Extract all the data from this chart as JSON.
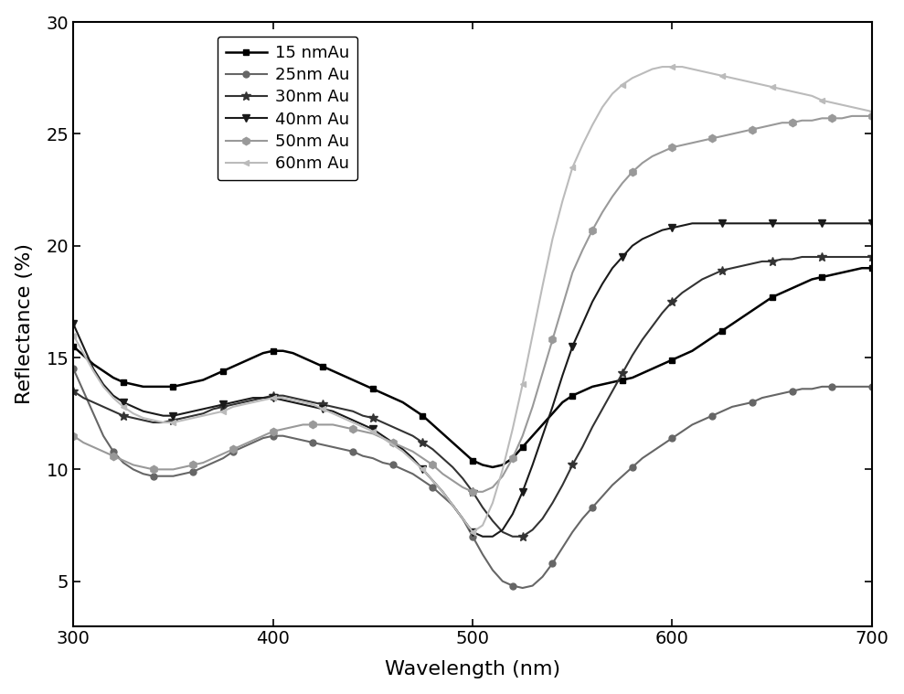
{
  "title": "",
  "xlabel": "Wavelength (nm)",
  "ylabel": "Reflectance (%)",
  "xlim": [
    300,
    700
  ],
  "ylim": [
    3,
    30
  ],
  "yticks": [
    5,
    10,
    15,
    20,
    25,
    30
  ],
  "xticks": [
    300,
    400,
    500,
    600,
    700
  ],
  "background_color": "#ffffff",
  "series": [
    {
      "label": "15 nmAu",
      "color": "#000000",
      "marker": "s",
      "markersize": 5,
      "linewidth": 1.8,
      "markevery": 5,
      "x": [
        300,
        305,
        310,
        315,
        320,
        325,
        330,
        335,
        340,
        345,
        350,
        355,
        360,
        365,
        370,
        375,
        380,
        385,
        390,
        395,
        400,
        405,
        410,
        415,
        420,
        425,
        430,
        435,
        440,
        445,
        450,
        455,
        460,
        465,
        470,
        475,
        480,
        485,
        490,
        495,
        500,
        505,
        510,
        515,
        520,
        525,
        530,
        535,
        540,
        545,
        550,
        555,
        560,
        565,
        570,
        575,
        580,
        585,
        590,
        595,
        600,
        605,
        610,
        615,
        620,
        625,
        630,
        635,
        640,
        645,
        650,
        655,
        660,
        665,
        670,
        675,
        680,
        685,
        690,
        695,
        700
      ],
      "y": [
        15.5,
        15.1,
        14.7,
        14.4,
        14.1,
        13.9,
        13.8,
        13.7,
        13.7,
        13.7,
        13.7,
        13.8,
        13.9,
        14.0,
        14.2,
        14.4,
        14.6,
        14.8,
        15.0,
        15.2,
        15.3,
        15.3,
        15.2,
        15.0,
        14.8,
        14.6,
        14.4,
        14.2,
        14.0,
        13.8,
        13.6,
        13.4,
        13.2,
        13.0,
        12.7,
        12.4,
        12.0,
        11.6,
        11.2,
        10.8,
        10.4,
        10.2,
        10.1,
        10.2,
        10.5,
        11.0,
        11.5,
        12.0,
        12.5,
        13.0,
        13.3,
        13.5,
        13.7,
        13.8,
        13.9,
        14.0,
        14.1,
        14.3,
        14.5,
        14.7,
        14.9,
        15.1,
        15.3,
        15.6,
        15.9,
        16.2,
        16.5,
        16.8,
        17.1,
        17.4,
        17.7,
        17.9,
        18.1,
        18.3,
        18.5,
        18.6,
        18.7,
        18.8,
        18.9,
        19.0,
        19.0
      ]
    },
    {
      "label": "25nm Au",
      "color": "#666666",
      "marker": "o",
      "markersize": 5,
      "linewidth": 1.5,
      "markevery": 4,
      "x": [
        300,
        305,
        310,
        315,
        320,
        325,
        330,
        335,
        340,
        345,
        350,
        355,
        360,
        365,
        370,
        375,
        380,
        385,
        390,
        395,
        400,
        405,
        410,
        415,
        420,
        425,
        430,
        435,
        440,
        445,
        450,
        455,
        460,
        465,
        470,
        475,
        480,
        485,
        490,
        495,
        500,
        505,
        510,
        515,
        520,
        525,
        530,
        535,
        540,
        545,
        550,
        555,
        560,
        565,
        570,
        575,
        580,
        585,
        590,
        595,
        600,
        605,
        610,
        615,
        620,
        625,
        630,
        635,
        640,
        645,
        650,
        655,
        660,
        665,
        670,
        675,
        680,
        685,
        690,
        695,
        700
      ],
      "y": [
        14.5,
        13.5,
        12.5,
        11.5,
        10.8,
        10.3,
        10.0,
        9.8,
        9.7,
        9.7,
        9.7,
        9.8,
        9.9,
        10.1,
        10.3,
        10.5,
        10.8,
        11.0,
        11.2,
        11.4,
        11.5,
        11.5,
        11.4,
        11.3,
        11.2,
        11.1,
        11.0,
        10.9,
        10.8,
        10.6,
        10.5,
        10.3,
        10.2,
        10.0,
        9.8,
        9.5,
        9.2,
        8.8,
        8.4,
        7.8,
        7.0,
        6.2,
        5.5,
        5.0,
        4.8,
        4.7,
        4.8,
        5.2,
        5.8,
        6.5,
        7.2,
        7.8,
        8.3,
        8.8,
        9.3,
        9.7,
        10.1,
        10.5,
        10.8,
        11.1,
        11.4,
        11.7,
        12.0,
        12.2,
        12.4,
        12.6,
        12.8,
        12.9,
        13.0,
        13.2,
        13.3,
        13.4,
        13.5,
        13.6,
        13.6,
        13.7,
        13.7,
        13.7,
        13.7,
        13.7,
        13.7
      ]
    },
    {
      "label": "30nm Au",
      "color": "#333333",
      "marker": "*",
      "markersize": 7,
      "linewidth": 1.5,
      "markevery": 5,
      "x": [
        300,
        305,
        310,
        315,
        320,
        325,
        330,
        335,
        340,
        345,
        350,
        355,
        360,
        365,
        370,
        375,
        380,
        385,
        390,
        395,
        400,
        405,
        410,
        415,
        420,
        425,
        430,
        435,
        440,
        445,
        450,
        455,
        460,
        465,
        470,
        475,
        480,
        485,
        490,
        495,
        500,
        505,
        510,
        515,
        520,
        525,
        530,
        535,
        540,
        545,
        550,
        555,
        560,
        565,
        570,
        575,
        580,
        585,
        590,
        595,
        600,
        605,
        610,
        615,
        620,
        625,
        630,
        635,
        640,
        645,
        650,
        655,
        660,
        665,
        670,
        675,
        680,
        685,
        690,
        695,
        700
      ],
      "y": [
        13.5,
        13.2,
        13.0,
        12.8,
        12.6,
        12.4,
        12.3,
        12.2,
        12.1,
        12.1,
        12.2,
        12.3,
        12.4,
        12.5,
        12.7,
        12.8,
        12.9,
        13.0,
        13.1,
        13.2,
        13.3,
        13.3,
        13.2,
        13.1,
        13.0,
        12.9,
        12.8,
        12.7,
        12.6,
        12.4,
        12.3,
        12.1,
        11.9,
        11.7,
        11.5,
        11.2,
        10.9,
        10.5,
        10.1,
        9.6,
        9.0,
        8.3,
        7.7,
        7.2,
        7.0,
        7.0,
        7.3,
        7.8,
        8.5,
        9.3,
        10.2,
        11.0,
        11.9,
        12.7,
        13.5,
        14.3,
        15.1,
        15.8,
        16.4,
        17.0,
        17.5,
        17.9,
        18.2,
        18.5,
        18.7,
        18.9,
        19.0,
        19.1,
        19.2,
        19.3,
        19.3,
        19.4,
        19.4,
        19.5,
        19.5,
        19.5,
        19.5,
        19.5,
        19.5,
        19.5,
        19.5
      ]
    },
    {
      "label": "40nm Au",
      "color": "#1a1a1a",
      "marker": "v",
      "markersize": 6,
      "linewidth": 1.5,
      "markevery": 5,
      "x": [
        300,
        305,
        310,
        315,
        320,
        325,
        330,
        335,
        340,
        345,
        350,
        355,
        360,
        365,
        370,
        375,
        380,
        385,
        390,
        395,
        400,
        405,
        410,
        415,
        420,
        425,
        430,
        435,
        440,
        445,
        450,
        455,
        460,
        465,
        470,
        475,
        480,
        485,
        490,
        495,
        500,
        505,
        510,
        515,
        520,
        525,
        530,
        535,
        540,
        545,
        550,
        555,
        560,
        565,
        570,
        575,
        580,
        585,
        590,
        595,
        600,
        605,
        610,
        615,
        620,
        625,
        630,
        635,
        640,
        645,
        650,
        655,
        660,
        665,
        670,
        675,
        680,
        685,
        690,
        695,
        700
      ],
      "y": [
        16.5,
        15.5,
        14.5,
        13.8,
        13.3,
        13.0,
        12.8,
        12.6,
        12.5,
        12.4,
        12.4,
        12.5,
        12.6,
        12.7,
        12.8,
        12.9,
        13.0,
        13.1,
        13.2,
        13.2,
        13.2,
        13.1,
        13.0,
        12.9,
        12.8,
        12.7,
        12.6,
        12.4,
        12.2,
        12.0,
        11.8,
        11.5,
        11.2,
        10.9,
        10.5,
        10.0,
        9.5,
        9.0,
        8.4,
        7.8,
        7.2,
        7.0,
        7.0,
        7.3,
        8.0,
        9.0,
        10.2,
        11.5,
        12.8,
        14.2,
        15.5,
        16.5,
        17.5,
        18.3,
        19.0,
        19.5,
        20.0,
        20.3,
        20.5,
        20.7,
        20.8,
        20.9,
        21.0,
        21.0,
        21.0,
        21.0,
        21.0,
        21.0,
        21.0,
        21.0,
        21.0,
        21.0,
        21.0,
        21.0,
        21.0,
        21.0,
        21.0,
        21.0,
        21.0,
        21.0,
        21.0
      ]
    },
    {
      "label": "50nm Au",
      "color": "#999999",
      "marker": "h",
      "markersize": 6,
      "linewidth": 1.5,
      "markevery": 4,
      "x": [
        300,
        305,
        310,
        315,
        320,
        325,
        330,
        335,
        340,
        345,
        350,
        355,
        360,
        365,
        370,
        375,
        380,
        385,
        390,
        395,
        400,
        405,
        410,
        415,
        420,
        425,
        430,
        435,
        440,
        445,
        450,
        455,
        460,
        465,
        470,
        475,
        480,
        485,
        490,
        495,
        500,
        505,
        510,
        515,
        520,
        525,
        530,
        535,
        540,
        545,
        550,
        555,
        560,
        565,
        570,
        575,
        580,
        585,
        590,
        595,
        600,
        605,
        610,
        615,
        620,
        625,
        630,
        635,
        640,
        645,
        650,
        655,
        660,
        665,
        670,
        675,
        680,
        685,
        690,
        695,
        700
      ],
      "y": [
        11.5,
        11.2,
        11.0,
        10.8,
        10.6,
        10.4,
        10.2,
        10.1,
        10.0,
        10.0,
        10.0,
        10.1,
        10.2,
        10.3,
        10.5,
        10.7,
        10.9,
        11.1,
        11.3,
        11.5,
        11.7,
        11.8,
        11.9,
        12.0,
        12.0,
        12.0,
        12.0,
        11.9,
        11.8,
        11.7,
        11.6,
        11.4,
        11.2,
        11.0,
        10.8,
        10.5,
        10.2,
        9.8,
        9.5,
        9.2,
        9.0,
        9.0,
        9.2,
        9.7,
        10.5,
        11.5,
        12.8,
        14.3,
        15.8,
        17.3,
        18.8,
        19.8,
        20.7,
        21.5,
        22.2,
        22.8,
        23.3,
        23.7,
        24.0,
        24.2,
        24.4,
        24.5,
        24.6,
        24.7,
        24.8,
        24.9,
        25.0,
        25.1,
        25.2,
        25.3,
        25.4,
        25.5,
        25.5,
        25.6,
        25.6,
        25.7,
        25.7,
        25.7,
        25.8,
        25.8,
        25.8
      ]
    },
    {
      "label": "60nm Au",
      "color": "#bbbbbb",
      "marker": "<",
      "markersize": 5,
      "linewidth": 1.5,
      "markevery": 5,
      "x": [
        300,
        305,
        310,
        315,
        320,
        325,
        330,
        335,
        340,
        345,
        350,
        355,
        360,
        365,
        370,
        375,
        380,
        385,
        390,
        395,
        400,
        405,
        410,
        415,
        420,
        425,
        430,
        435,
        440,
        445,
        450,
        455,
        460,
        465,
        470,
        475,
        480,
        485,
        490,
        495,
        500,
        505,
        510,
        515,
        520,
        525,
        530,
        535,
        540,
        545,
        550,
        555,
        560,
        565,
        570,
        575,
        580,
        585,
        590,
        595,
        600,
        605,
        610,
        615,
        620,
        625,
        630,
        635,
        640,
        645,
        650,
        655,
        660,
        665,
        670,
        675,
        680,
        685,
        690,
        695,
        700
      ],
      "y": [
        16.0,
        15.2,
        14.4,
        13.7,
        13.2,
        12.8,
        12.5,
        12.3,
        12.2,
        12.1,
        12.1,
        12.2,
        12.3,
        12.4,
        12.5,
        12.6,
        12.8,
        12.9,
        13.0,
        13.1,
        13.2,
        13.2,
        13.1,
        13.0,
        12.9,
        12.7,
        12.5,
        12.3,
        12.1,
        11.9,
        11.7,
        11.4,
        11.1,
        10.8,
        10.4,
        10.0,
        9.5,
        9.0,
        8.4,
        7.8,
        7.2,
        7.5,
        8.5,
        10.0,
        11.8,
        13.8,
        16.0,
        18.2,
        20.3,
        22.0,
        23.5,
        24.5,
        25.4,
        26.2,
        26.8,
        27.2,
        27.5,
        27.7,
        27.9,
        28.0,
        28.0,
        28.0,
        27.9,
        27.8,
        27.7,
        27.6,
        27.5,
        27.4,
        27.3,
        27.2,
        27.1,
        27.0,
        26.9,
        26.8,
        26.7,
        26.5,
        26.4,
        26.3,
        26.2,
        26.1,
        26.0
      ]
    }
  ]
}
